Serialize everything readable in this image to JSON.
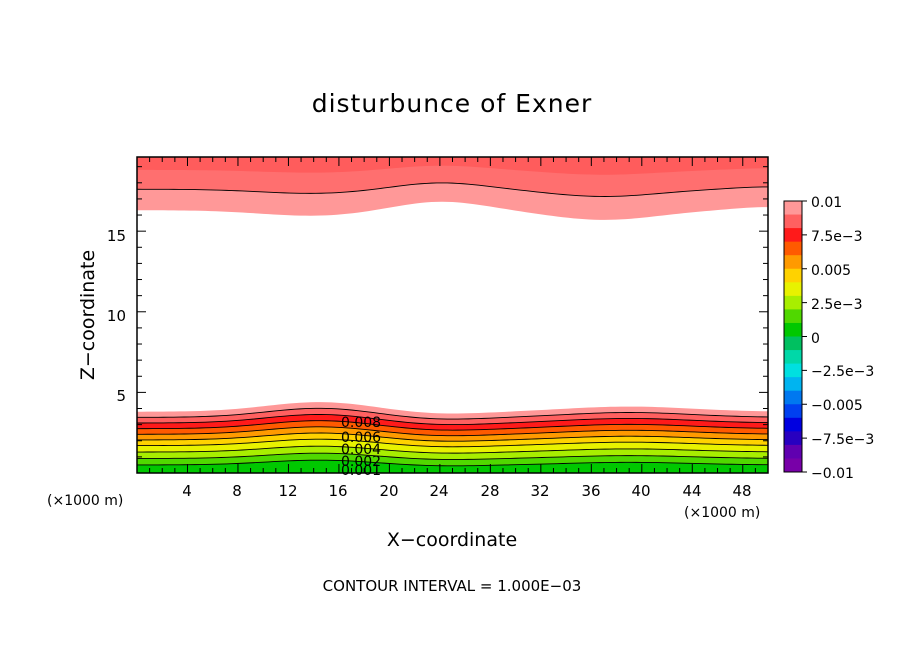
{
  "chart_data": {
    "type": "contour",
    "title": "disturbunce of Exner",
    "xlabel": "X−coordinate",
    "ylabel": "Z−coordinate",
    "x_unit_left": "(×1000 m)",
    "x_unit_right": "(×1000 m)",
    "footer": "CONTOUR INTERVAL = 1.000E−03",
    "xlim": [
      0,
      50
    ],
    "ylim": [
      0,
      19.6
    ],
    "x_ticks": [
      4,
      8,
      12,
      16,
      20,
      24,
      28,
      32,
      36,
      40,
      44,
      48
    ],
    "x_tick_labels": [
      "4",
      "8",
      "12",
      "16",
      "20",
      "24",
      "28",
      "32",
      "36",
      "40",
      "44",
      "48"
    ],
    "y_ticks": [
      5,
      10,
      15
    ],
    "y_tick_labels": [
      "5",
      "10",
      "15"
    ],
    "contour_interval": 0.001,
    "contour_labels": [
      "0.008",
      "0.006",
      "0.004",
      "0.002",
      "0.001"
    ],
    "colorbar": {
      "range": [
        -0.01,
        0.01
      ],
      "labels": [
        "0.01",
        "7.5e−3",
        "0.005",
        "2.5e−3",
        "0",
        "−2.5e−3",
        "−0.005",
        "−7.5e−3",
        "−0.01"
      ],
      "colors": [
        "#ff9898",
        "#ff6060",
        "#ff1a1a",
        "#ff5a00",
        "#ff9a00",
        "#ffd200",
        "#e8f200",
        "#a8ee00",
        "#50d800",
        "#00c800",
        "#00c060",
        "#00d8a8",
        "#00e0e0",
        "#00b4f0",
        "#0078f0",
        "#0040f0",
        "#0000e0",
        "#2800c0",
        "#6000b0",
        "#7800a8"
      ]
    },
    "lower_bands": {
      "levels": [
        0.0085,
        0.008,
        0.007,
        0.006,
        0.005,
        0.004,
        0.003,
        0.002,
        0.001,
        0.0
      ],
      "colors": [
        "#ff9898",
        "#ff6060",
        "#ff1a1a",
        "#ff5a00",
        "#ff9a00",
        "#ffd200",
        "#e8f200",
        "#a8ee00",
        "#50d800",
        "#00c800"
      ],
      "top_z_at_x0": [
        3.8,
        3.45,
        3.1,
        2.75,
        2.4,
        2.05,
        1.7,
        1.3,
        0.9,
        0.5
      ]
    },
    "upper_bands": {
      "levels": [
        0.0085,
        0.009,
        0.0095
      ],
      "colors": [
        "#ff9898",
        "#ff6f6f",
        "#ff5c5c"
      ],
      "bottom_z_at_x0": [
        16.3,
        17.6,
        18.8
      ]
    }
  }
}
